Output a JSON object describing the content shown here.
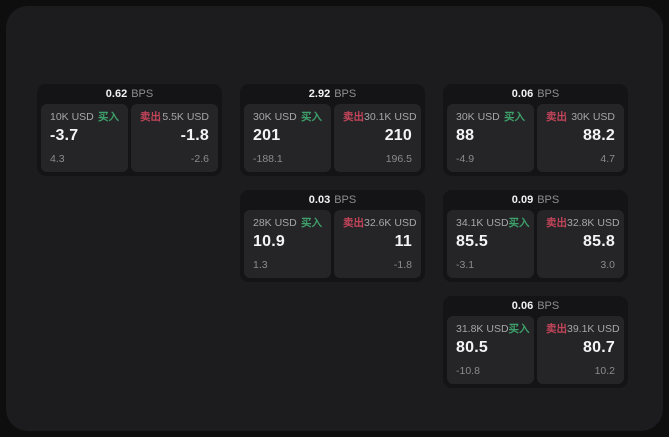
{
  "theme": {
    "page_bg": "#0e0e0e",
    "surface_bg": "#1c1c1e",
    "card_bg": "#141416",
    "panel_bg": "#252528",
    "buy_green": "#3ea06a",
    "sell_red": "#c24459",
    "primary_text": "#f4f4f4",
    "muted_text": "#8b8b8d"
  },
  "labels": {
    "bps": "BPS",
    "buy": "买入",
    "sell": "卖出"
  },
  "cards": [
    {
      "bps": "0.62",
      "buy": {
        "amount": "10K USD",
        "price": "-3.7",
        "delta": "4.3"
      },
      "sell": {
        "amount": "5.5K USD",
        "price": "-1.8",
        "delta": "-2.6"
      }
    },
    {
      "bps": "2.92",
      "buy": {
        "amount": "30K USD",
        "price": "201",
        "delta": "-188.1"
      },
      "sell": {
        "amount": "30.1K USD",
        "price": "210",
        "delta": "196.5"
      }
    },
    {
      "bps": "0.06",
      "buy": {
        "amount": "30K USD",
        "price": "88",
        "delta": "-4.9"
      },
      "sell": {
        "amount": "30K USD",
        "price": "88.2",
        "delta": "4.7"
      }
    },
    {
      "bps": "0.03",
      "buy": {
        "amount": "28K USD",
        "price": "10.9",
        "delta": "1.3"
      },
      "sell": {
        "amount": "32.6K USD",
        "price": "11",
        "delta": "-1.8"
      }
    },
    {
      "bps": "0.09",
      "buy": {
        "amount": "34.1K USD",
        "price": "85.5",
        "delta": "-3.1"
      },
      "sell": {
        "amount": "32.8K USD",
        "price": "85.8",
        "delta": "3.0"
      }
    },
    {
      "bps": "0.06",
      "buy": {
        "amount": "31.8K USD",
        "price": "80.5",
        "delta": "-10.8"
      },
      "sell": {
        "amount": "39.1K USD",
        "price": "80.7",
        "delta": "10.2"
      }
    }
  ]
}
